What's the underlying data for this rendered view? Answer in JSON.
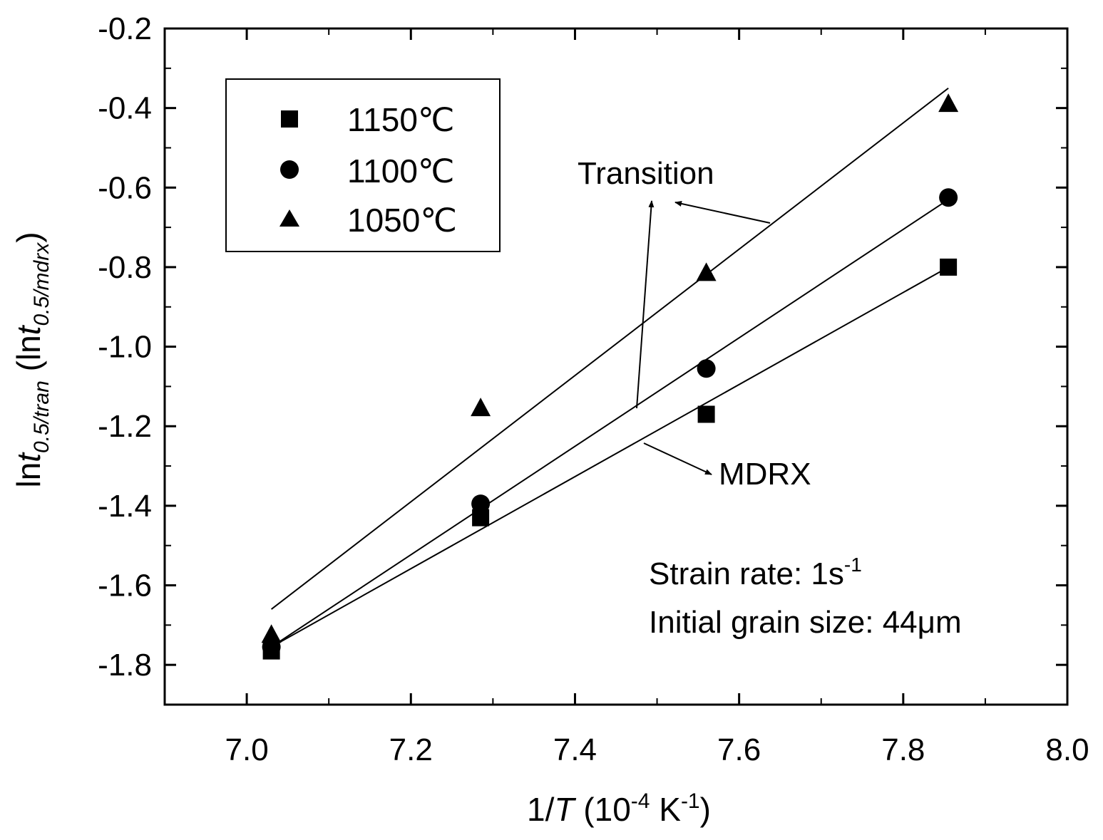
{
  "chart_data": {
    "type": "scatter",
    "xlabel": {
      "prefix": "1/",
      "var": "T",
      "mid": " (10",
      "exp": "-4",
      "unit": " K",
      "uexp": "-1",
      "close": ")"
    },
    "ylabel": {
      "ln1": "ln",
      "t1": "t",
      "sub1": "0.5/tran",
      "open": " (ln",
      "t2": "t",
      "sub2": "0.5/mdrx",
      "close": ")"
    },
    "xlim": [
      6.9,
      8.0
    ],
    "ylim": [
      -1.9,
      -0.2
    ],
    "xticks": [
      "7.0",
      "7.2",
      "7.4",
      "7.6",
      "7.8",
      "8.0"
    ],
    "yticks": [
      "-0.2",
      "-0.4",
      "-0.6",
      "-0.8",
      "-1.0",
      "-1.2",
      "-1.4",
      "-1.6",
      "-1.8"
    ],
    "grid": false,
    "legend_position": "top-left",
    "series": [
      {
        "name": "1150℃",
        "marker": "square",
        "x": [
          7.03,
          7.285,
          7.56,
          7.855
        ],
        "y": [
          -1.765,
          -1.43,
          -1.17,
          -0.8
        ],
        "fit": {
          "x": [
            7.03,
            7.855
          ],
          "y": [
            -1.755,
            -0.8
          ]
        }
      },
      {
        "name": "1100℃",
        "marker": "circle",
        "x": [
          7.03,
          7.285,
          7.56,
          7.855
        ],
        "y": [
          -1.755,
          -1.395,
          -1.055,
          -0.625
        ],
        "fit": {
          "x": [
            7.03,
            7.855
          ],
          "y": [
            -1.755,
            -0.63
          ]
        }
      },
      {
        "name": "1050℃",
        "marker": "triangle",
        "x": [
          7.03,
          7.285,
          7.56,
          7.855
        ],
        "y": [
          -1.725,
          -1.155,
          -0.815,
          -0.39
        ],
        "fit": {
          "x": [
            7.03,
            7.855
          ],
          "y": [
            -1.66,
            -0.35
          ]
        }
      }
    ],
    "annotations": {
      "transition": {
        "label": "Transition"
      },
      "mdrx": {
        "label": "MDRX"
      }
    },
    "conditions": {
      "strain_rate_prefix": "Strain rate: 1s",
      "strain_rate_exp": "-1",
      "grain_size": "Initial grain size: 44μm"
    }
  }
}
